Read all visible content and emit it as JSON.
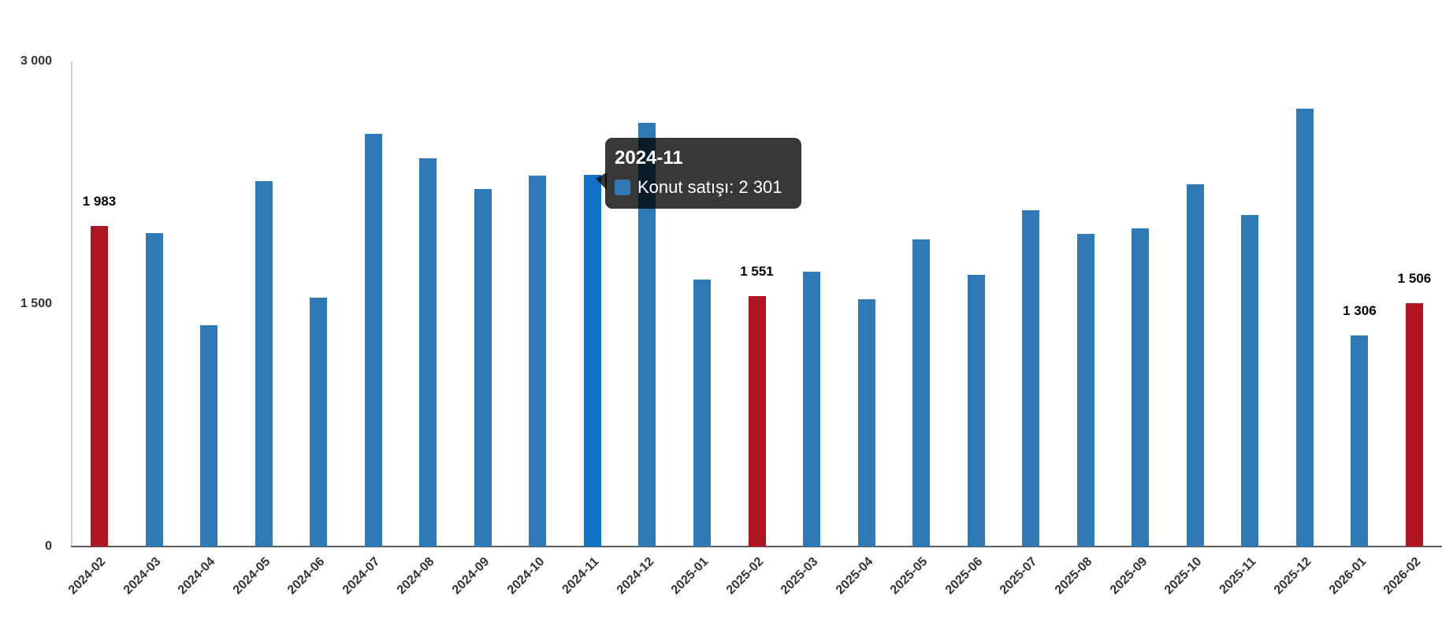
{
  "chart_data": {
    "type": "bar",
    "title": "",
    "xlabel": "",
    "ylabel": "",
    "categories": [
      "2024-02",
      "2024-03",
      "2024-04",
      "2024-05",
      "2024-06",
      "2024-07",
      "2024-08",
      "2024-09",
      "2024-10",
      "2024-11",
      "2024-12",
      "2025-01",
      "2025-02",
      "2025-03",
      "2025-04",
      "2025-05",
      "2025-06",
      "2025-07",
      "2025-08",
      "2025-09",
      "2025-10",
      "2025-11",
      "2025-12",
      "2026-01",
      "2026-02"
    ],
    "series": [
      {
        "name": "Konut satışı",
        "values": [
          1983,
          1940,
          1370,
          2260,
          1540,
          2550,
          2400,
          2210,
          2295,
          2301,
          2620,
          1650,
          1551,
          1700,
          1530,
          1900,
          1680,
          2080,
          1935,
          1970,
          2240,
          2050,
          2710,
          1306,
          1506
        ]
      }
    ],
    "ylim": [
      0,
      3000
    ],
    "yticks": [
      {
        "label": "0",
        "value": 0
      },
      {
        "label": "1 500",
        "value": 1500
      },
      {
        "label": "3 000",
        "value": 3000
      }
    ],
    "grid": false,
    "legend_position": "none",
    "x_label_rotation": -45,
    "highlighted_index": 9,
    "red_indices": [
      0,
      12,
      24
    ],
    "data_labels": {
      "0": "1 983",
      "12": "1 551",
      "23": "1 306",
      "24": "1 506"
    },
    "colors": {
      "bar_blue": "#2f7ab5",
      "bar_blue_hover": "#1173c8",
      "bar_red": "#b01420",
      "tooltip_bg": "rgba(0,0,0,0.78)",
      "axis_y_line": "#ccd6e0",
      "axis_x_line": "#5a5e62",
      "tick_text": "#333333"
    }
  },
  "tooltip": {
    "title": "2024-11",
    "series_label": "Konut satışı",
    "value": "2 301",
    "text": "Konut satışı: 2 301",
    "swatch_color": "#2f7ab5"
  }
}
